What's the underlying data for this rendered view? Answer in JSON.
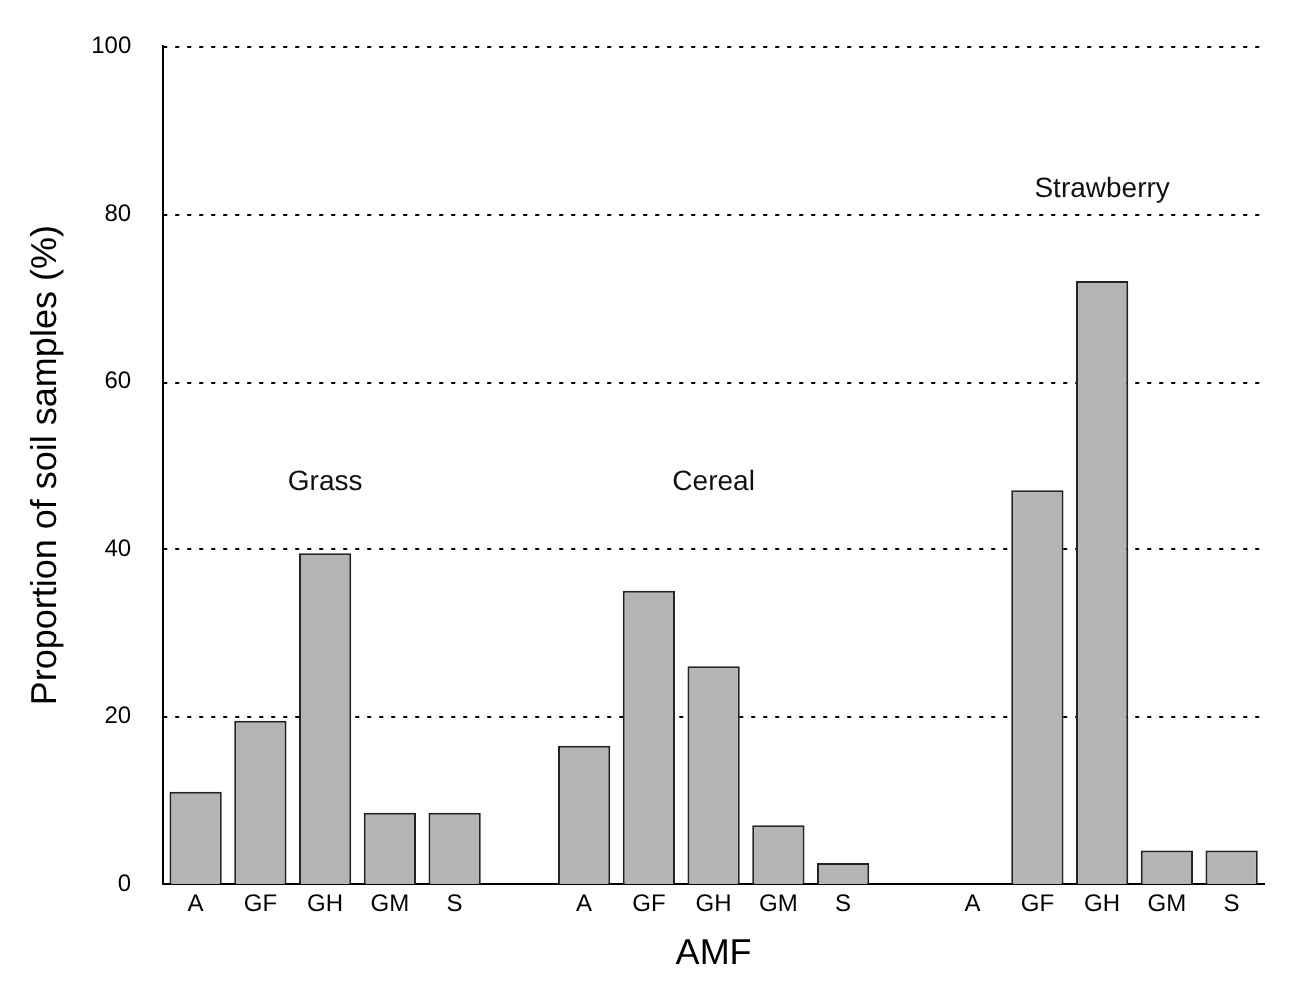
{
  "chart_data": {
    "type": "bar",
    "xlabel": "AMF",
    "ylabel": "Proportion of soil samples (%)",
    "categories": [
      "A",
      "GF",
      "GH",
      "GM",
      "S",
      null,
      "A",
      "GF",
      "GH",
      "GM",
      "S",
      null,
      "A",
      "GF",
      "GH",
      "GM",
      "S"
    ],
    "values": [
      11,
      19.5,
      39.5,
      8.5,
      8.5,
      null,
      16.5,
      35,
      26,
      7,
      2.5,
      null,
      0,
      47,
      72,
      4,
      4
    ],
    "color": "#b4b4b4",
    "ylim": [
      0,
      100
    ],
    "yticks": [
      0,
      20,
      40,
      60,
      80,
      100
    ],
    "grid": "y",
    "annotations": [
      "Grass",
      "Cereal",
      "Strawberry"
    ]
  }
}
